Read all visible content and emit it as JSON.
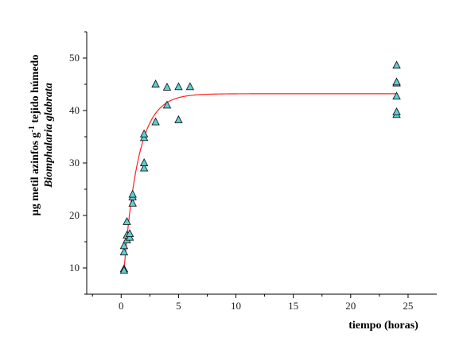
{
  "chart_data": {
    "type": "scatter",
    "title": "",
    "xlabel": "tiempo (horas)",
    "ylabel_line1_prefix": "µg metil azinfos g",
    "ylabel_line1_sup": "-1",
    "ylabel_line1_suffix": " tejido húmedo",
    "ylabel_line2": "Biomphalaria glabrata",
    "xlim": [
      -3,
      27.5
    ],
    "ylim": [
      5,
      55
    ],
    "xticks": [
      0,
      5,
      10,
      15,
      20,
      25
    ],
    "yticks": [
      10,
      20,
      30,
      40,
      50
    ],
    "marker_color": "#5fd0d6",
    "fit_color": "#ff2020",
    "series": [
      {
        "marker": "triangle",
        "points": [
          [
            0.25,
            9.8
          ],
          [
            0.25,
            9.5
          ],
          [
            0.25,
            13.0
          ],
          [
            0.25,
            14.2
          ],
          [
            0.5,
            15.3
          ],
          [
            0.5,
            16.2
          ],
          [
            0.5,
            18.8
          ],
          [
            0.75,
            15.8
          ],
          [
            0.75,
            16.5
          ],
          [
            1,
            22.3
          ],
          [
            1,
            23.5
          ],
          [
            1,
            24.0
          ],
          [
            2,
            29.0
          ],
          [
            2,
            30.0
          ],
          [
            2,
            34.8
          ],
          [
            2,
            35.5
          ],
          [
            3,
            37.8
          ],
          [
            3,
            45.0
          ],
          [
            4,
            41.0
          ],
          [
            4,
            44.4
          ],
          [
            5,
            38.2
          ],
          [
            5,
            44.5
          ],
          [
            6,
            44.5
          ],
          [
            24,
            39.2
          ],
          [
            24,
            39.7
          ],
          [
            24,
            42.7
          ],
          [
            24,
            45.2
          ],
          [
            24,
            45.4
          ],
          [
            24,
            48.6
          ]
        ]
      }
    ],
    "fit": {
      "plateau": 43.2,
      "y0": 9.5,
      "x0": 0.25,
      "rate": 0.8
    }
  }
}
